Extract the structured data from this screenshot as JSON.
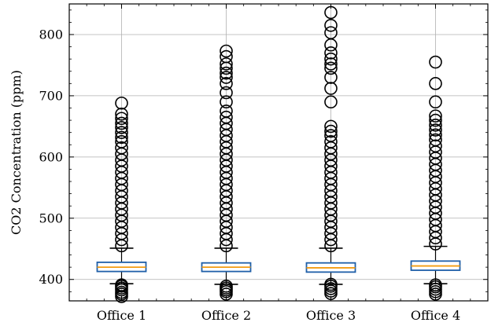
{
  "chart_data": {
    "type": "box",
    "categories": [
      "Office 1",
      "Office 2",
      "Office 3",
      "Office 4"
    ],
    "ylabel": "CO2 Concentration (ppm)",
    "xlabel": "",
    "title": "",
    "ylim": [
      365,
      850
    ],
    "yticks": [
      400,
      500,
      600,
      700,
      800
    ],
    "grid": true,
    "colors": {
      "box": "#1f5fa8",
      "median": "#f39c12",
      "flier": "#000000",
      "grid": "#b0b0b0"
    },
    "boxes": [
      {
        "q1": 413,
        "median": 420,
        "q3": 428,
        "whisker_low": 393,
        "whisker_high": 451,
        "fliers": [
          372,
          376,
          379,
          383,
          386,
          389,
          391,
          455,
          465,
          475,
          485,
          495,
          505,
          515,
          525,
          535,
          545,
          555,
          565,
          575,
          585,
          595,
          605,
          615,
          625,
          632,
          640,
          648,
          655,
          663,
          670,
          688
        ]
      },
      {
        "q1": 413,
        "median": 420,
        "q3": 427,
        "whisker_low": 392,
        "whisker_high": 451,
        "fliers": [
          376,
          380,
          383,
          386,
          389,
          455,
          465,
          475,
          485,
          495,
          505,
          515,
          525,
          535,
          545,
          555,
          565,
          575,
          585,
          595,
          605,
          615,
          625,
          635,
          645,
          655,
          665,
          675,
          690,
          705,
          720,
          730,
          737,
          745,
          752,
          764,
          773
        ]
      },
      {
        "q1": 412,
        "median": 419,
        "q3": 427,
        "whisker_low": 392,
        "whisker_high": 451,
        "fliers": [
          377,
          381,
          385,
          389,
          392,
          455,
          465,
          475,
          485,
          495,
          505,
          515,
          525,
          535,
          545,
          555,
          565,
          575,
          585,
          595,
          605,
          615,
          625,
          635,
          642,
          650,
          690,
          712,
          730,
          745,
          752,
          760,
          770,
          783,
          803,
          815,
          836
        ]
      },
      {
        "q1": 415,
        "median": 422,
        "q3": 430,
        "whisker_low": 393,
        "whisker_high": 454,
        "fliers": [
          376,
          380,
          384,
          388,
          391,
          458,
          468,
          478,
          488,
          498,
          508,
          518,
          528,
          538,
          548,
          558,
          568,
          578,
          588,
          598,
          608,
          618,
          628,
          636,
          644,
          652,
          660,
          667,
          690,
          720,
          755
        ]
      }
    ]
  }
}
